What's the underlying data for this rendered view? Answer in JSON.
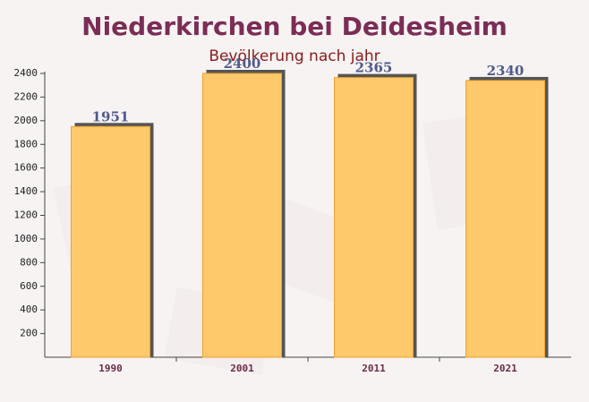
{
  "chart_data": {
    "type": "bar",
    "title": "Niederkirchen bei Deidesheim",
    "subtitle": "Bevölkerung nach jahr",
    "categories": [
      "1990",
      "2001",
      "2011",
      "2021"
    ],
    "values": [
      1951,
      2400,
      2365,
      2340
    ],
    "color": "#fec96a",
    "ylim": [
      0,
      2400
    ],
    "yticks": [
      200,
      400,
      600,
      800,
      1000,
      1200,
      1400,
      1600,
      1800,
      2000,
      2200,
      2400
    ],
    "grid": false
  }
}
